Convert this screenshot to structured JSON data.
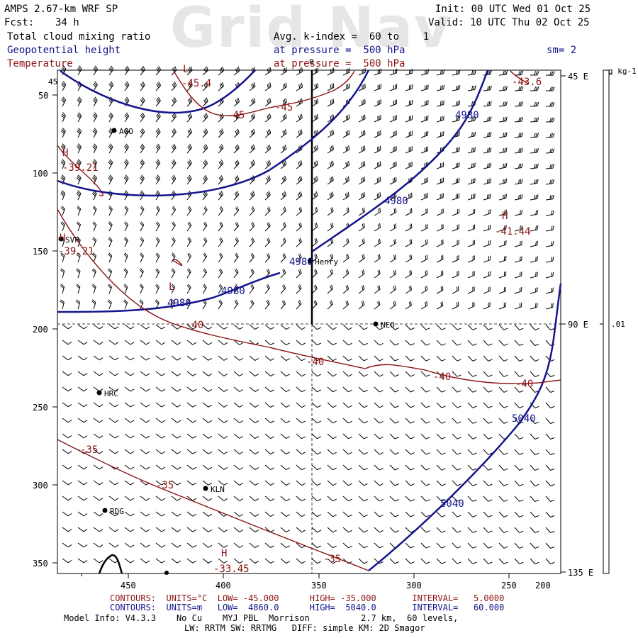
{
  "watermark": "Grid Nav",
  "header": {
    "model": "AMPS 2.67-km WRF SP",
    "fcst_label": "Fcst:",
    "fcst_value": "34 h",
    "init": "Init: 00 UTC Wed 01 Oct 25",
    "valid": "Valid: 10 UTC Thu 02 Oct 25",
    "field1": "Total cloud mixing ratio",
    "field2": "Geopotential height",
    "field3": "Temperature",
    "avg": "Avg. k-index =  60 to    1",
    "pres1": "at pressure =  500 hPa",
    "pres2": "at pressure =  500 hPa",
    "smooth": "sm= 2"
  },
  "axes": {
    "x_ticks": [
      "450",
      "400",
      "350",
      "300",
      "250",
      "200"
    ],
    "y_ticks": [
      "50",
      "100",
      "150",
      "200",
      "250",
      "300",
      "350"
    ],
    "corner_top": "45",
    "corner_top2": "0"
  },
  "lon_labels": [
    "45 E",
    "90 E",
    "135 E"
  ],
  "colorbar": {
    "units": "g kg-1",
    "mid_label": ".01"
  },
  "stations": [
    {
      "name": "AGO"
    },
    {
      "name": "SVP"
    },
    {
      "name": "Henry"
    },
    {
      "name": "NEO"
    },
    {
      "name": "HRC"
    },
    {
      "name": "KLN"
    },
    {
      "name": "RDG"
    }
  ],
  "contour_labels": {
    "height": [
      "4980",
      "4980",
      "4980",
      "4980",
      "4980",
      "5040",
      "5040"
    ],
    "temperature": [
      "-45.4",
      "-45",
      "-45",
      "-43.6",
      "-39.21",
      "-39.21",
      "-41.44",
      "-40",
      "-40",
      "-40",
      "-40",
      "-35",
      "-35",
      "-35",
      "-33.45"
    ],
    "extrema": [
      "L",
      "H",
      "H",
      "H",
      "L",
      "H"
    ]
  },
  "footer": {
    "line1": "CONTOURS:  UNITS=°C  LOW= -45.000      HIGH= -35.000       INTERVAL=   5.0000",
    "line2": "CONTOURS:  UNITS=m   LOW=  4860.0      HIGH=  5040.0       INTERVAL=   60.000",
    "line3": "Model Info: V4.3.3    No Cu    MYJ PBL  Morrison          2.7 km,  60 levels,",
    "line4": "LW: RRTM SW: RRTMG   DIFF: simple KM: 2D Smagor"
  },
  "colors": {
    "height": "#14148c",
    "temperature": "#8b1414",
    "text": "#000000"
  }
}
